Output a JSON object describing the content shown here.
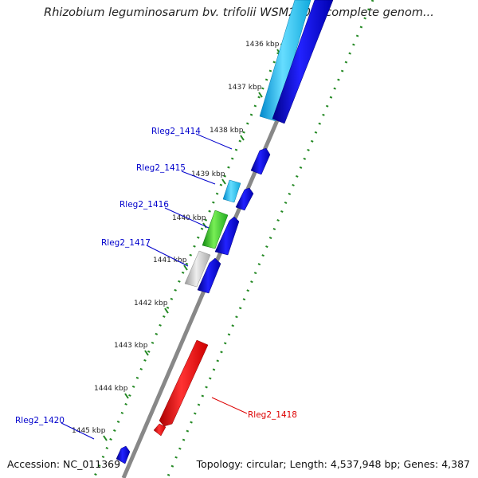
{
  "title": "Rhizobium leguminosarum bv. trifolii WSM2304, complete genom...",
  "footer": {
    "accession": "Accession: NC_011369",
    "summary": "Topology: circular; Length: 4,537,948 bp; Genes: 4,387"
  },
  "ticks": [
    {
      "label": "1436 kbp"
    },
    {
      "label": "1437 kbp"
    },
    {
      "label": "1438 kbp"
    },
    {
      "label": "1439 kbp"
    },
    {
      "label": "1440 kbp"
    },
    {
      "label": "1441 kbp"
    },
    {
      "label": "1442 kbp"
    },
    {
      "label": "1443 kbp"
    },
    {
      "label": "1444 kbp"
    },
    {
      "label": "1445 kbp"
    }
  ],
  "gene_labels": [
    {
      "text": "Rleg2_1414",
      "color": "#0000cc"
    },
    {
      "text": "Rleg2_1415",
      "color": "#0000cc"
    },
    {
      "text": "Rleg2_1416",
      "color": "#0000cc"
    },
    {
      "text": "Rleg2_1417",
      "color": "#0000cc"
    },
    {
      "text": "Rleg2_1418",
      "color": "#dd0000"
    },
    {
      "text": "Rleg2_1420",
      "color": "#0000cc"
    }
  ],
  "colors": {
    "backbone": "#888888",
    "forward_cds": "#0000ee",
    "light_cds": "#22bbee",
    "green_cds": "#33bb33",
    "gray_cds": "#bbbbbb",
    "reverse_cds": "#ee0000",
    "dots": "#228822"
  }
}
